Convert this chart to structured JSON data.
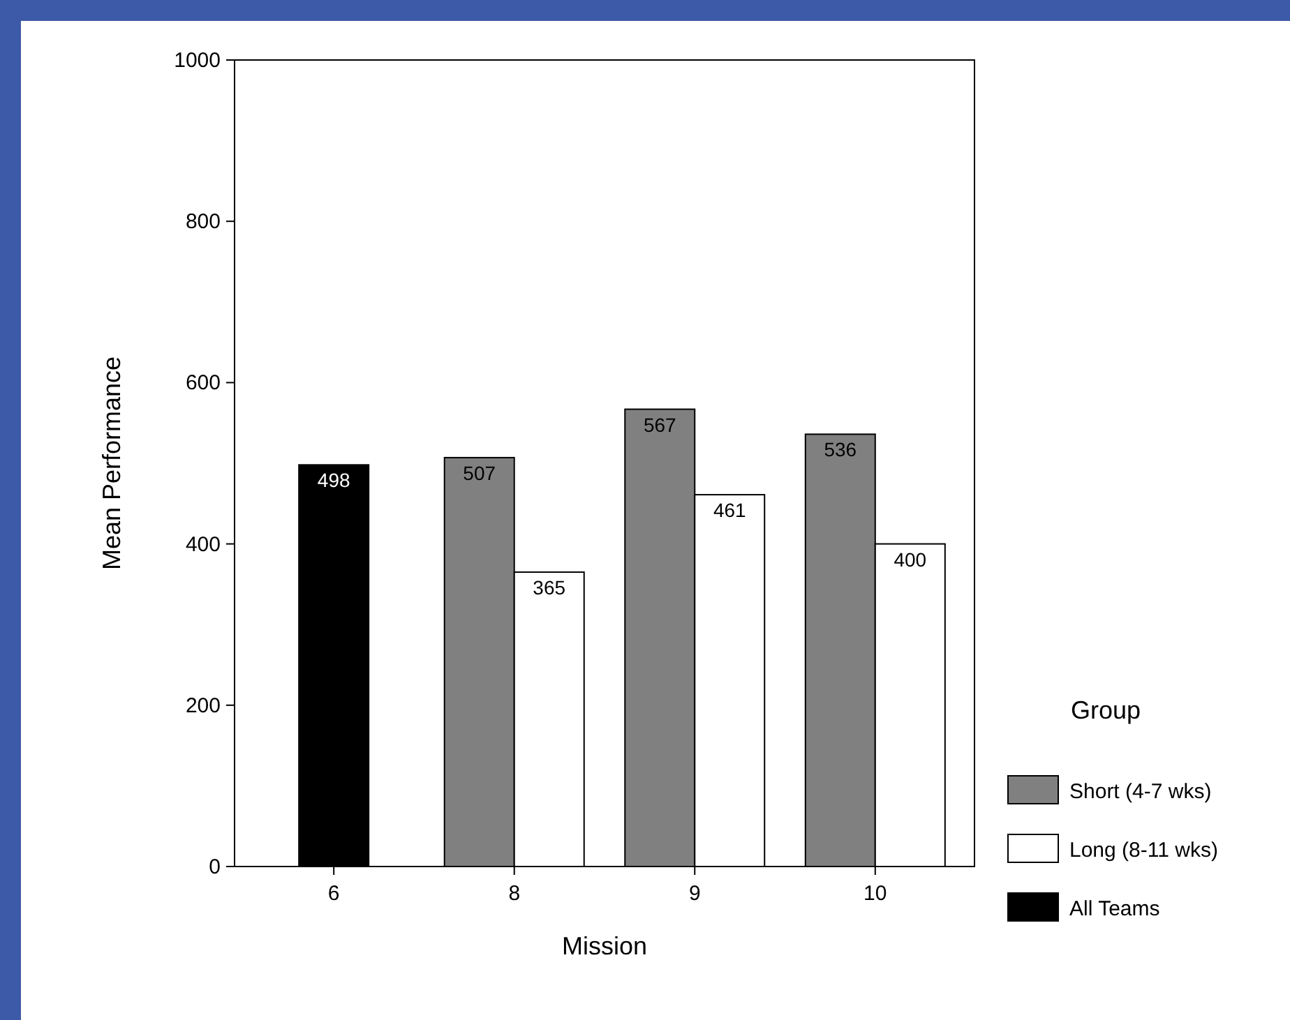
{
  "chart_data": {
    "type": "bar",
    "xlabel": "Mission",
    "ylabel": "Mean Performance",
    "legend_title": "Group",
    "categories": [
      "6",
      "8",
      "9",
      "10"
    ],
    "series": [
      {
        "name": "Short (4-7 wks)",
        "color": "#808080",
        "values": [
          null,
          507,
          567,
          536
        ]
      },
      {
        "name": "Long (8-11 wks)",
        "color": "#ffffff",
        "values": [
          null,
          365,
          461,
          400
        ]
      },
      {
        "name": "All Teams",
        "color": "#000000",
        "values": [
          498,
          null,
          null,
          null
        ]
      }
    ],
    "ylim": [
      0,
      1000
    ],
    "yticks": [
      0,
      200,
      400,
      600,
      800,
      1000
    ],
    "data_labels": true,
    "legend": "right",
    "grid": false
  }
}
